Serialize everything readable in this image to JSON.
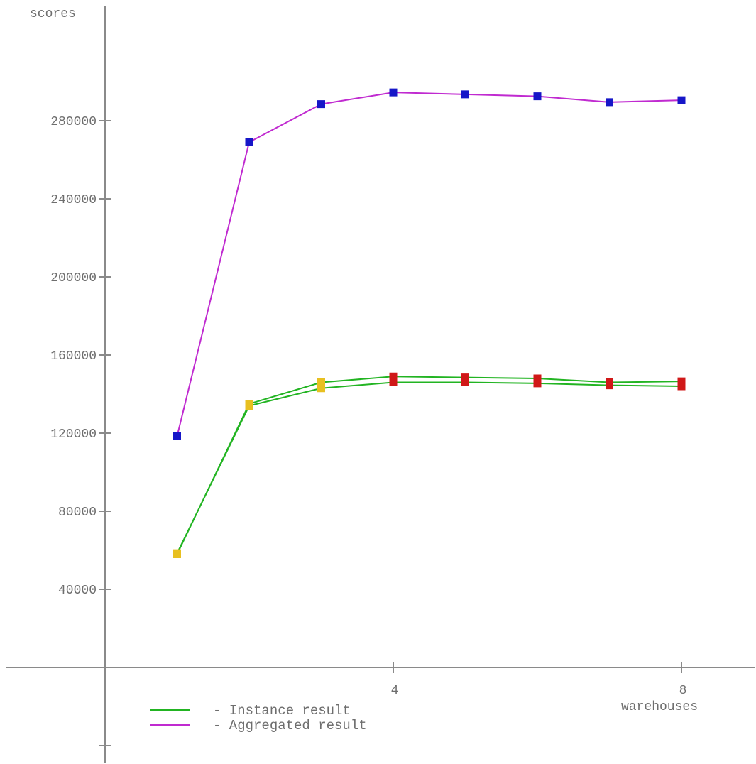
{
  "chart_data": {
    "type": "line",
    "ylabel": "scores",
    "xlabel": "warehouses",
    "xlim": [
      0,
      9
    ],
    "ylim": [
      -30000,
      310000
    ],
    "x_ticks": [
      {
        "value": 4,
        "label": "4"
      },
      {
        "value": 8,
        "label": "8"
      }
    ],
    "y_ticks": [
      {
        "value": 40000,
        "label": "40000"
      },
      {
        "value": 80000,
        "label": "80000"
      },
      {
        "value": 120000,
        "label": "120000"
      },
      {
        "value": 160000,
        "label": "160000"
      },
      {
        "value": 200000,
        "label": "200000"
      },
      {
        "value": 240000,
        "label": "240000"
      },
      {
        "value": 280000,
        "label": "280000"
      }
    ],
    "extra_y_ticks": [
      -40000
    ],
    "grid": false,
    "legend_position": "bottom-left",
    "x": [
      1,
      2,
      3,
      4,
      5,
      6,
      7,
      8
    ],
    "series": [
      {
        "name": "Aggregated result",
        "color": "#c02ad0",
        "marker_color": "#1616c8",
        "values": [
          118500,
          269000,
          288500,
          294500,
          293500,
          292500,
          289500,
          290500
        ]
      },
      {
        "name": "Instance result",
        "color": "#22b422",
        "marker_color": "#e8c020",
        "marker_color_late": "#d01818",
        "values": [
          58000,
          135000,
          146000,
          149000,
          148500,
          148000,
          146000,
          146500
        ]
      },
      {
        "name": "",
        "color": "#22b422",
        "marker_color": "#e8c020",
        "marker_color_late": "#d01818",
        "values": [
          58500,
          134000,
          143000,
          146000,
          146000,
          145500,
          144500,
          144000
        ]
      }
    ]
  },
  "legend": {
    "items": [
      {
        "label": "- Instance result",
        "color": "#22b422"
      },
      {
        "label": "- Aggregated result",
        "color": "#c02ad0"
      }
    ]
  }
}
